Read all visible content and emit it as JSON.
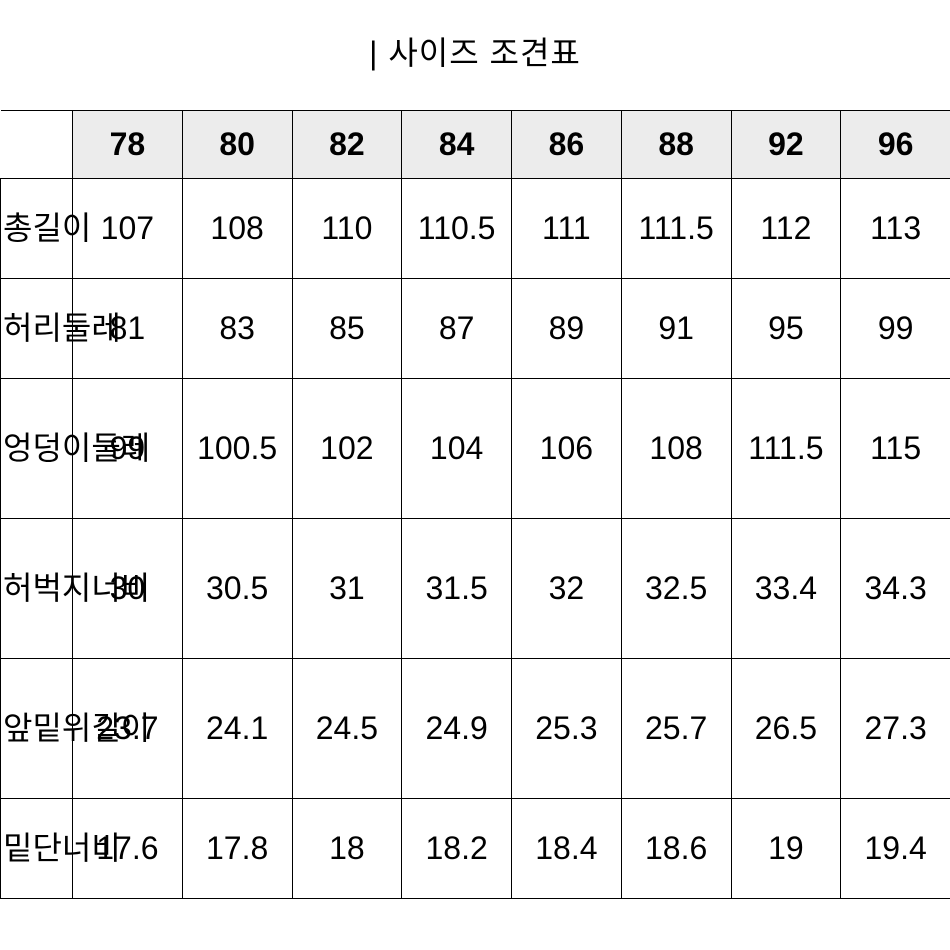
{
  "title": "| 사이즈 조견표",
  "table": {
    "type": "table",
    "columns": [
      "",
      "78",
      "80",
      "82",
      "84",
      "86",
      "88",
      "92",
      "96"
    ],
    "rows": [
      {
        "label": "총길이",
        "values": [
          "107",
          "108",
          "110",
          "110.5",
          "111",
          "111.5",
          "112",
          "113"
        ],
        "tall": false
      },
      {
        "label": "허리둘레",
        "values": [
          "81",
          "83",
          "85",
          "87",
          "89",
          "91",
          "95",
          "99"
        ],
        "tall": false
      },
      {
        "label": "엉덩이둘레",
        "values": [
          "99",
          "100.5",
          "102",
          "104",
          "106",
          "108",
          "111.5",
          "115"
        ],
        "tall": true
      },
      {
        "label": "허벅지너비",
        "values": [
          "30",
          "30.5",
          "31",
          "31.5",
          "32",
          "32.5",
          "33.4",
          "34.3"
        ],
        "tall": true
      },
      {
        "label": "앞밑위길이",
        "values": [
          "23.7",
          "24.1",
          "24.5",
          "24.9",
          "25.3",
          "25.7",
          "26.5",
          "27.3"
        ],
        "tall": true
      },
      {
        "label": "밑단너비",
        "values": [
          "17.6",
          "17.8",
          "18",
          "18.2",
          "18.4",
          "18.6",
          "19",
          "19.4"
        ],
        "tall": false
      }
    ],
    "header_bg_color": "#ececec",
    "border_color": "#000000",
    "text_color": "#000000",
    "background_color": "#ffffff",
    "header_fontsize": 32,
    "cell_fontsize": 32,
    "header_fontweight": 700,
    "cell_fontweight": 400
  }
}
